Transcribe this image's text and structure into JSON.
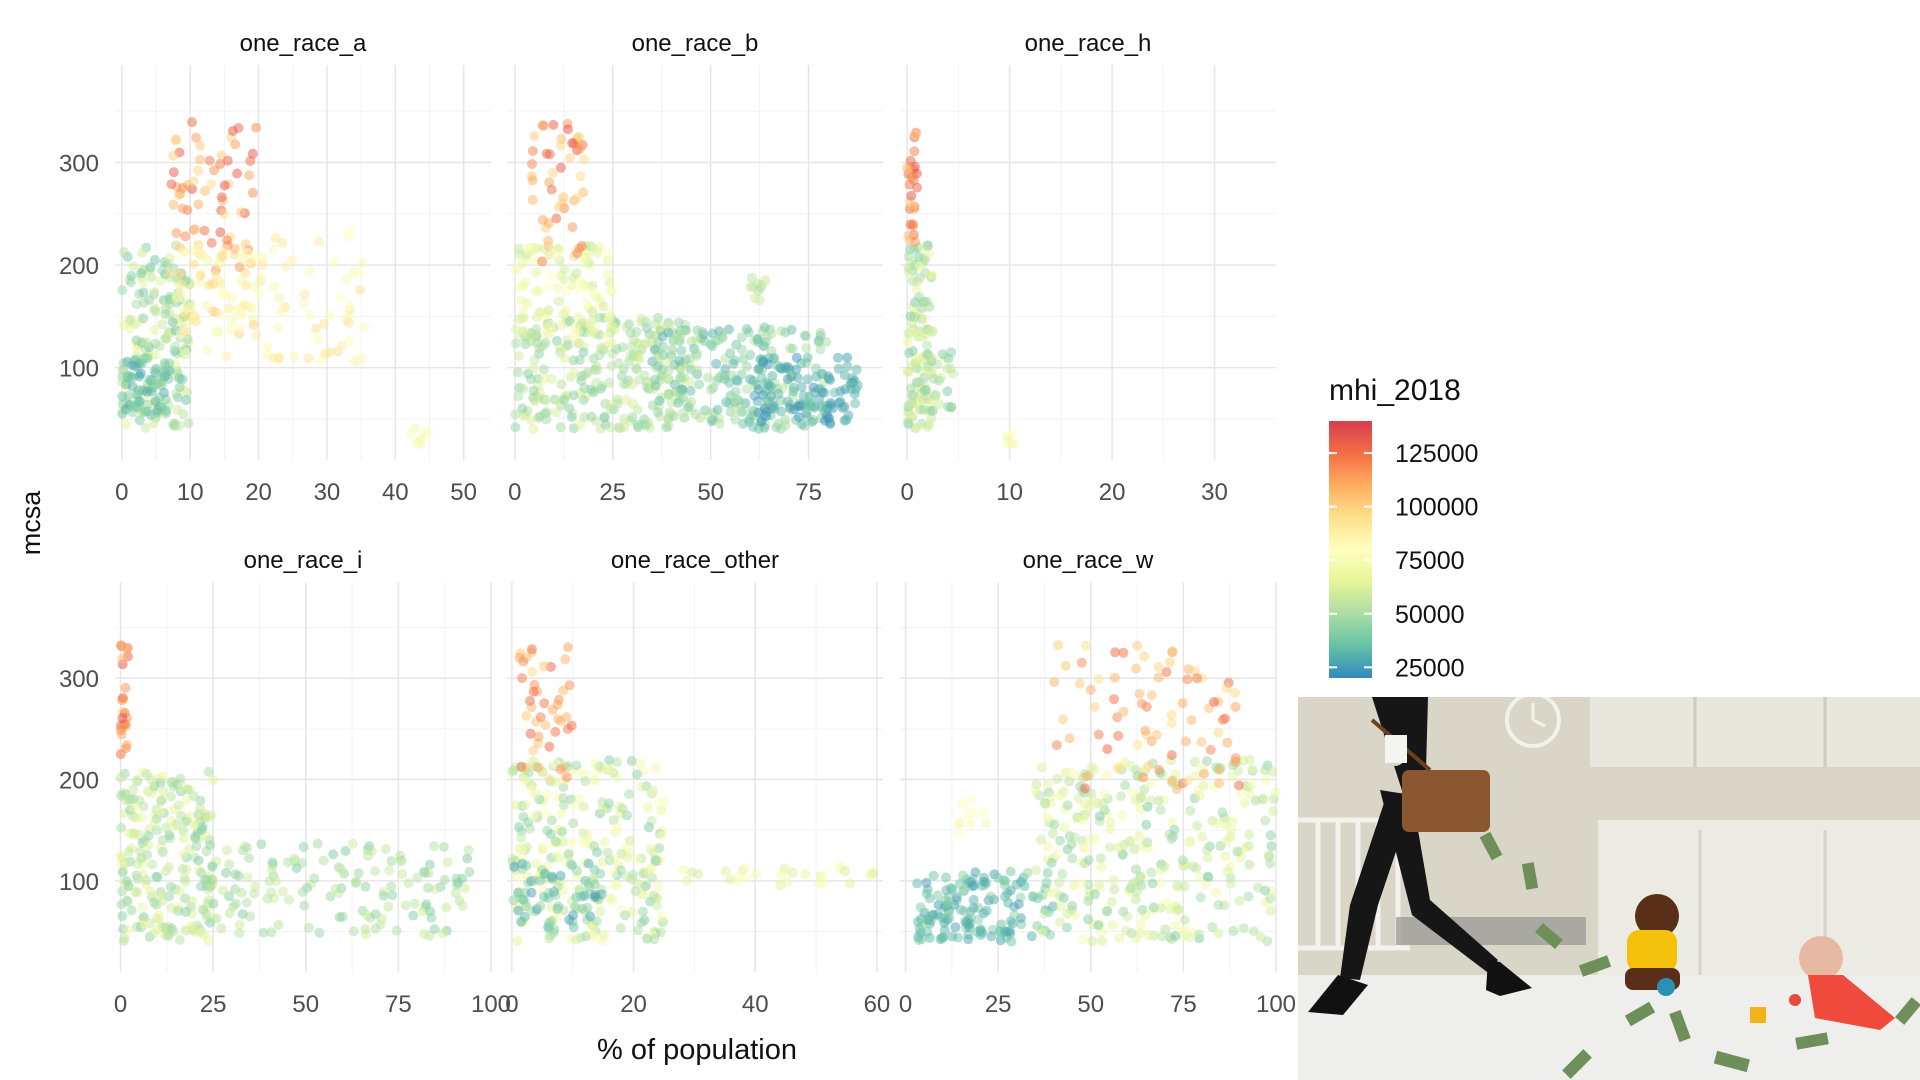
{
  "chart_data": {
    "type": "scatter",
    "xlabel": "% of population",
    "ylabel": "mcsa",
    "y_ticks": [
      100,
      200,
      300
    ],
    "ylim": [
      10,
      395
    ],
    "grid": true,
    "point_alpha": 0.5,
    "legend": {
      "title": "mhi_2018",
      "placement": "right",
      "ticks": [
        25000,
        50000,
        75000,
        100000,
        125000
      ],
      "range": [
        20000,
        140000
      ],
      "colors": [
        "#3288bd",
        "#66c2a5",
        "#abdda4",
        "#e6f598",
        "#ffffbf",
        "#fee08b",
        "#fdae61",
        "#f46d43",
        "#d53e4f"
      ]
    },
    "facets": [
      {
        "title": "one_race_a",
        "x_ticks": [
          0,
          10,
          20,
          30,
          40,
          50
        ],
        "xlim": [
          -1,
          54
        ],
        "clusters": [
          {
            "x": [
              0,
              10
            ],
            "y": [
              40,
              220
            ],
            "inc": [
              35000,
              70000
            ],
            "n": 180
          },
          {
            "x": [
              0,
              7
            ],
            "y": [
              55,
              110
            ],
            "inc": [
              25000,
              45000
            ],
            "n": 60
          },
          {
            "x": [
              7,
              20
            ],
            "y": [
              190,
              340
            ],
            "inc": [
              95000,
              135000
            ],
            "n": 70
          },
          {
            "x": [
              8,
              20
            ],
            "y": [
              110,
              220
            ],
            "inc": [
              70000,
              100000
            ],
            "n": 70
          },
          {
            "x": [
              20,
              36
            ],
            "y": [
              105,
              235
            ],
            "inc": [
              75000,
              95000
            ],
            "n": 55
          },
          {
            "x": [
              42,
              45
            ],
            "y": [
              22,
              42
            ],
            "inc": [
              72000,
              80000
            ],
            "n": 8
          }
        ]
      },
      {
        "title": "one_race_b",
        "x_ticks": [
          0,
          25,
          50,
          75
        ],
        "xlim": [
          -2,
          94
        ],
        "clusters": [
          {
            "x": [
              0,
              45
            ],
            "y": [
              40,
              150
            ],
            "inc": [
              40000,
              65000
            ],
            "n": 260
          },
          {
            "x": [
              0,
              25
            ],
            "y": [
              130,
              220
            ],
            "inc": [
              55000,
              80000
            ],
            "n": 110
          },
          {
            "x": [
              3,
              18
            ],
            "y": [
              190,
              340
            ],
            "inc": [
              95000,
              135000
            ],
            "n": 50
          },
          {
            "x": [
              35,
              80
            ],
            "y": [
              40,
              140
            ],
            "inc": [
              30000,
              55000
            ],
            "n": 220
          },
          {
            "x": [
              60,
              88
            ],
            "y": [
              45,
              110
            ],
            "inc": [
              22000,
              35000
            ],
            "n": 100
          },
          {
            "x": [
              60,
              64
            ],
            "y": [
              165,
              190
            ],
            "inc": [
              50000,
              60000
            ],
            "n": 10
          }
        ]
      },
      {
        "title": "one_race_h",
        "x_ticks": [
          0,
          10,
          20,
          30
        ],
        "xlim": [
          -0.7,
          36
        ],
        "clusters": [
          {
            "x": [
              0,
              2.5
            ],
            "y": [
              40,
              220
            ],
            "inc": [
              40000,
              70000
            ],
            "n": 120
          },
          {
            "x": [
              0,
              1
            ],
            "y": [
              220,
              335
            ],
            "inc": [
              100000,
              135000
            ],
            "n": 30
          },
          {
            "x": [
              2,
              4.5
            ],
            "y": [
              60,
              120
            ],
            "inc": [
              40000,
              60000
            ],
            "n": 20
          },
          {
            "x": [
              9.5,
              10.5
            ],
            "y": [
              25,
              45
            ],
            "inc": [
              70000,
              80000
            ],
            "n": 6
          }
        ]
      },
      {
        "title": "one_race_i",
        "x_ticks": [
          0,
          25,
          50,
          75,
          100
        ],
        "xlim": [
          -1.5,
          100
        ],
        "clusters": [
          {
            "x": [
              0,
              25
            ],
            "y": [
              40,
              210
            ],
            "inc": [
              40000,
              70000
            ],
            "n": 220
          },
          {
            "x": [
              0,
              2
            ],
            "y": [
              220,
              335
            ],
            "inc": [
              100000,
              135000
            ],
            "n": 25
          },
          {
            "x": [
              22,
              95
            ],
            "y": [
              45,
              140
            ],
            "inc": [
              40000,
              60000
            ],
            "n": 150
          }
        ]
      },
      {
        "title": "one_race_other",
        "x_ticks": [
          0,
          20,
          40,
          60
        ],
        "xlim": [
          -0.8,
          61
        ],
        "clusters": [
          {
            "x": [
              0,
              25
            ],
            "y": [
              40,
              220
            ],
            "inc": [
              40000,
              80000
            ],
            "n": 280
          },
          {
            "x": [
              0,
              15
            ],
            "y": [
              50,
              120
            ],
            "inc": [
              25000,
              45000
            ],
            "n": 50
          },
          {
            "x": [
              1,
              10
            ],
            "y": [
              200,
              335
            ],
            "inc": [
              95000,
              130000
            ],
            "n": 45
          },
          {
            "x": [
              25,
              60
            ],
            "y": [
              95,
              115
            ],
            "inc": [
              60000,
              80000
            ],
            "n": 30
          }
        ]
      },
      {
        "title": "one_race_w",
        "x_ticks": [
          0,
          25,
          50,
          75,
          100
        ],
        "xlim": [
          -1.5,
          100
        ],
        "clusters": [
          {
            "x": [
              3,
              40
            ],
            "y": [
              40,
              110
            ],
            "inc": [
              25000,
              45000
            ],
            "n": 150
          },
          {
            "x": [
              35,
              100
            ],
            "y": [
              40,
              220
            ],
            "inc": [
              40000,
              75000
            ],
            "n": 320
          },
          {
            "x": [
              40,
              90
            ],
            "y": [
              190,
              335
            ],
            "inc": [
              90000,
              130000
            ],
            "n": 80
          },
          {
            "x": [
              14,
              22
            ],
            "y": [
              140,
              180
            ],
            "inc": [
              70000,
              85000
            ],
            "n": 10
          }
        ]
      }
    ]
  }
}
